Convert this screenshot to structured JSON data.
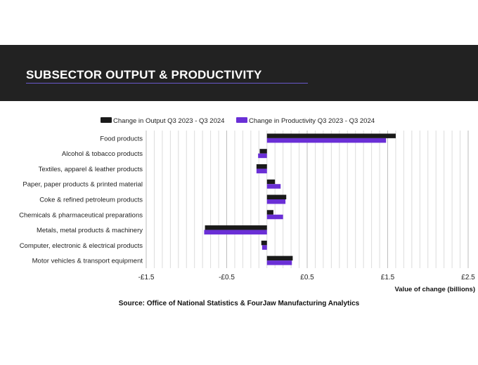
{
  "header": {
    "title": "SUBSECTOR OUTPUT & PRODUCTIVITY"
  },
  "source": "Source: Office of National Statistics & FourJaw Manufacturing Analytics",
  "colors": {
    "banner_bg": "#222222",
    "accent_rule": "#6a5acd",
    "output": "#1a1a1a",
    "productivity": "#6a2fd6"
  },
  "chart_data": {
    "type": "bar",
    "orientation": "horizontal",
    "categories": [
      "Food products",
      "Alcohol & tobacco products",
      "Textiles, apparel & leather products",
      "Paper, paper products & printed material",
      "Coke & refined petroleum products",
      "Chemicals & pharmaceutical preparations",
      "Metals, metal products & machinery",
      "Computer, electronic & electrical products",
      "Motor vehicles & transport equipment"
    ],
    "series": [
      {
        "name": "Change in Output Q3 2023 - Q3 2024",
        "color": "#1a1a1a",
        "values": [
          1.6,
          -0.09,
          -0.13,
          0.1,
          0.24,
          0.08,
          -0.77,
          -0.07,
          0.32
        ]
      },
      {
        "name": "Change in Productivity Q3 2023 - Q3 2024",
        "color": "#6a2fd6",
        "values": [
          1.48,
          -0.11,
          -0.13,
          0.17,
          0.23,
          0.2,
          -0.78,
          -0.06,
          0.31
        ]
      }
    ],
    "xlim": [
      -1.5,
      2.5
    ],
    "xticks": [
      -1.5,
      -0.5,
      0.5,
      1.5,
      2.5
    ],
    "xtick_labels": [
      "-£1.5",
      "-£0.5",
      "£0.5",
      "£1.5",
      "£2.5"
    ],
    "minor_grid_step": 0.1,
    "xlabel": "Value of change (billions)",
    "ylabel": "",
    "grid": true,
    "legend_position": "top"
  }
}
